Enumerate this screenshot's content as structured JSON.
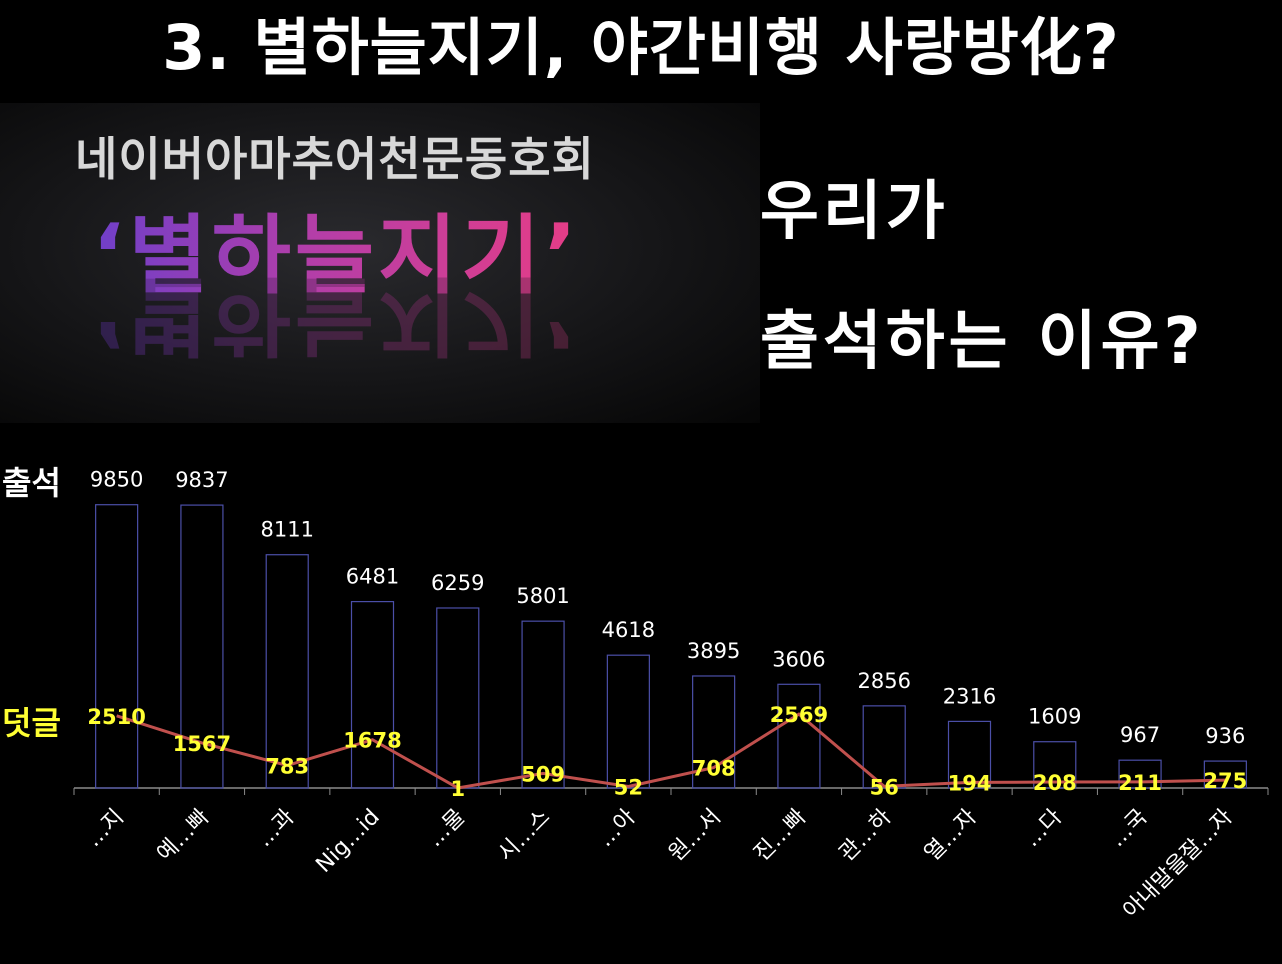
{
  "slide": {
    "title": "3. 별하늘지기, 야간비행 사랑방化?",
    "banner_club": "네이버아마추어천문동호회",
    "banner_name": "‘별하늘지기’",
    "question_line1": "우리가",
    "question_line2": "출석하는 이유?"
  },
  "chart_labels": {
    "attendance": "출석",
    "comments": "덧글"
  },
  "colors": {
    "background": "#000000",
    "bar_stroke": "#4b4fa8",
    "line": "#c0504d",
    "bar_label": "#ffffff",
    "line_label": "#ffff33"
  },
  "chart_data": {
    "type": "bar",
    "categories": [
      "…지",
      "예…빠",
      "…과",
      "Nig…id",
      "…물",
      "시…스",
      "…아",
      "원…서",
      "진…빠",
      "관…하",
      "열…자",
      "…다",
      "…국",
      "아내말을잘…자"
    ],
    "series": [
      {
        "name": "출석",
        "type": "bar",
        "values": [
          9850,
          9837,
          8111,
          6481,
          6259,
          5801,
          4618,
          3895,
          3606,
          2856,
          2316,
          1609,
          967,
          936
        ]
      },
      {
        "name": "덧글",
        "type": "line",
        "values": [
          2510,
          1567,
          783,
          1678,
          1,
          509,
          52,
          708,
          2569,
          56,
          194,
          208,
          211,
          275
        ]
      }
    ],
    "ylim": [
      0,
      10000
    ],
    "grid": false
  }
}
